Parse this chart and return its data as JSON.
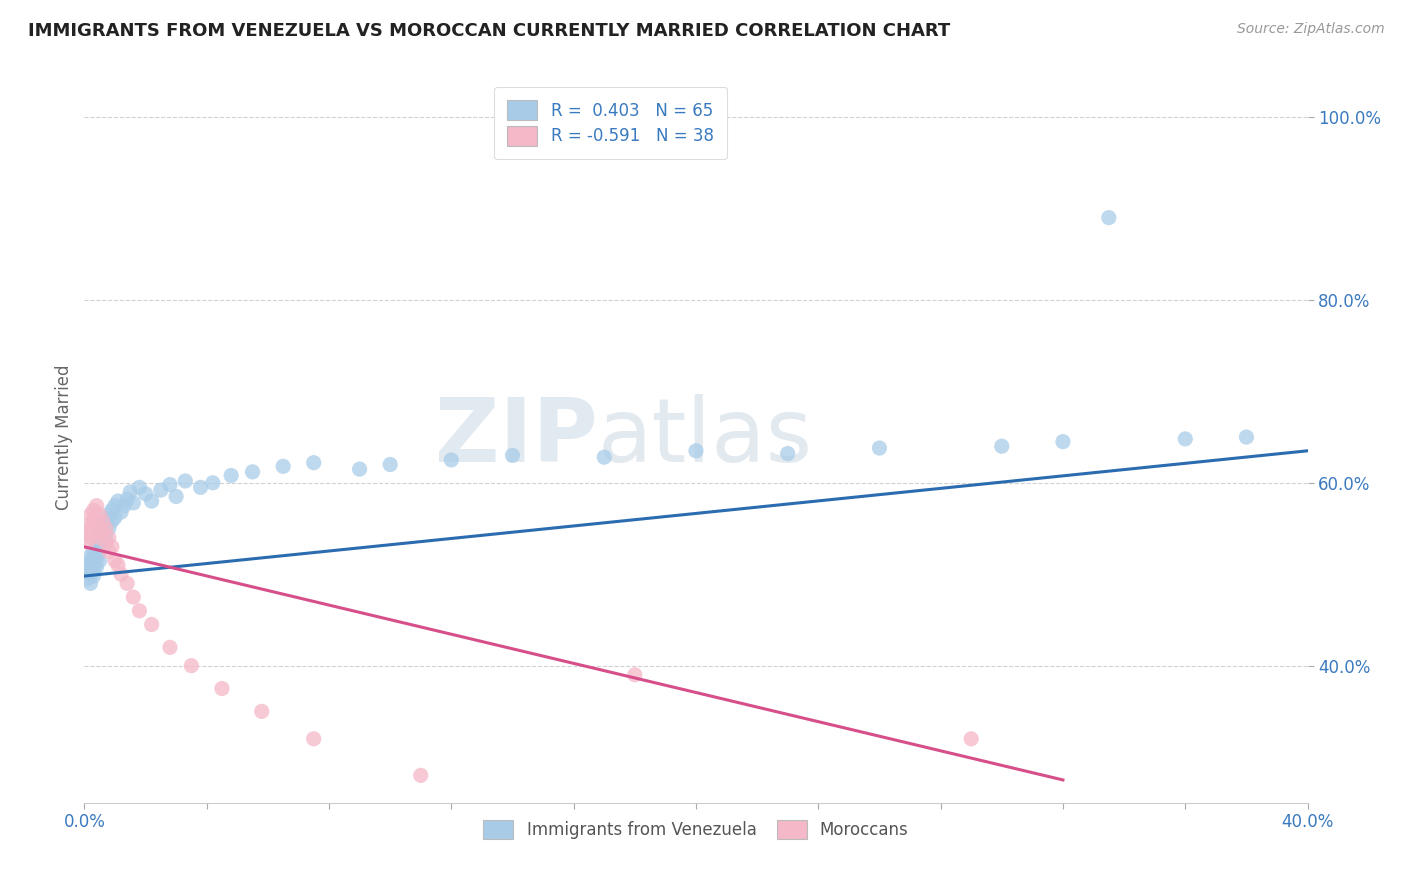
{
  "title": "IMMIGRANTS FROM VENEZUELA VS MOROCCAN CURRENTLY MARRIED CORRELATION CHART",
  "source_text": "Source: ZipAtlas.com",
  "ylabel": "Currently Married",
  "xlim": [
    0.0,
    0.4
  ],
  "ylim": [
    0.25,
    1.05
  ],
  "blue_R": 0.403,
  "blue_N": 65,
  "pink_R": -0.591,
  "pink_N": 38,
  "legend_label_blue": "R =  0.403   N = 65",
  "legend_label_pink": "R = -0.591   N = 38",
  "series_blue_label": "Immigrants from Venezuela",
  "series_pink_label": "Moroccans",
  "blue_color": "#a8cce8",
  "pink_color": "#f4b8c8",
  "blue_line_color": "#2b6cb0",
  "pink_line_color": "#d64f8a",
  "watermark_color": "#d0dce8",
  "background_color": "#ffffff",
  "grid_color": "#cccccc",
  "y_ticks": [
    0.4,
    0.6,
    0.8,
    1.0
  ],
  "y_tick_labels": [
    "40.0%",
    "60.0%",
    "80.0%",
    "100.0%"
  ],
  "blue_x": [
    0.001,
    0.001,
    0.001,
    0.002,
    0.002,
    0.002,
    0.002,
    0.002,
    0.003,
    0.003,
    0.003,
    0.003,
    0.003,
    0.004,
    0.004,
    0.004,
    0.004,
    0.005,
    0.005,
    0.005,
    0.005,
    0.006,
    0.006,
    0.006,
    0.007,
    0.007,
    0.007,
    0.008,
    0.008,
    0.009,
    0.009,
    0.01,
    0.01,
    0.011,
    0.012,
    0.013,
    0.014,
    0.015,
    0.016,
    0.018,
    0.02,
    0.022,
    0.025,
    0.028,
    0.03,
    0.033,
    0.038,
    0.042,
    0.048,
    0.055,
    0.065,
    0.075,
    0.09,
    0.1,
    0.12,
    0.14,
    0.17,
    0.2,
    0.23,
    0.26,
    0.3,
    0.32,
    0.335,
    0.36,
    0.38
  ],
  "blue_y": [
    0.505,
    0.51,
    0.495,
    0.515,
    0.5,
    0.49,
    0.52,
    0.508,
    0.525,
    0.515,
    0.505,
    0.498,
    0.512,
    0.53,
    0.518,
    0.508,
    0.522,
    0.535,
    0.545,
    0.525,
    0.515,
    0.54,
    0.555,
    0.53,
    0.56,
    0.545,
    0.538,
    0.565,
    0.55,
    0.57,
    0.558,
    0.575,
    0.562,
    0.58,
    0.568,
    0.575,
    0.582,
    0.59,
    0.578,
    0.595,
    0.588,
    0.58,
    0.592,
    0.598,
    0.585,
    0.602,
    0.595,
    0.6,
    0.608,
    0.612,
    0.618,
    0.622,
    0.615,
    0.62,
    0.625,
    0.63,
    0.628,
    0.635,
    0.632,
    0.638,
    0.64,
    0.645,
    0.89,
    0.648,
    0.65
  ],
  "pink_x": [
    0.001,
    0.001,
    0.002,
    0.002,
    0.002,
    0.002,
    0.003,
    0.003,
    0.003,
    0.003,
    0.004,
    0.004,
    0.004,
    0.005,
    0.005,
    0.005,
    0.006,
    0.006,
    0.007,
    0.007,
    0.008,
    0.008,
    0.009,
    0.01,
    0.011,
    0.012,
    0.014,
    0.016,
    0.018,
    0.022,
    0.028,
    0.035,
    0.045,
    0.058,
    0.075,
    0.11,
    0.18,
    0.29
  ],
  "pink_y": [
    0.535,
    0.545,
    0.555,
    0.565,
    0.54,
    0.55,
    0.56,
    0.545,
    0.57,
    0.555,
    0.56,
    0.548,
    0.575,
    0.565,
    0.552,
    0.54,
    0.558,
    0.545,
    0.55,
    0.535,
    0.54,
    0.525,
    0.53,
    0.515,
    0.51,
    0.5,
    0.49,
    0.475,
    0.46,
    0.445,
    0.42,
    0.4,
    0.375,
    0.35,
    0.32,
    0.28,
    0.39,
    0.32
  ],
  "blue_trend_x": [
    0.0,
    0.4
  ],
  "blue_trend_y": [
    0.498,
    0.635
  ],
  "pink_trend_x": [
    0.0,
    0.32
  ],
  "pink_trend_y": [
    0.53,
    0.275
  ]
}
